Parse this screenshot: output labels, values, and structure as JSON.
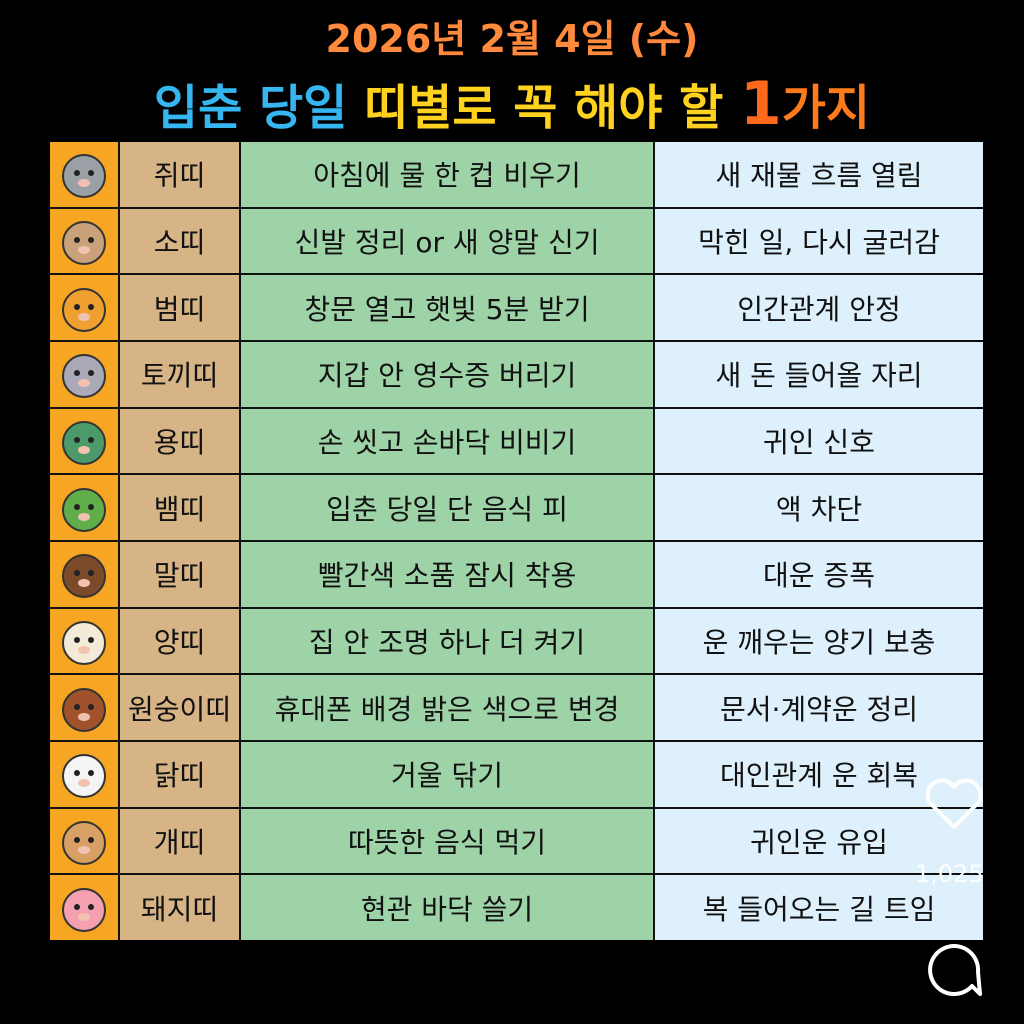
{
  "header": {
    "date": "2026년 2월 4일 (수)",
    "title_part1": "입춘 당일",
    "title_part2": "띠별로 꼭 해야 할",
    "title_number": "1",
    "title_part3": "가지"
  },
  "table": {
    "rows": [
      [
        "쥐띠",
        "아침에 물 한 컵 비우기",
        "새 재물 흐름 열림"
      ],
      [
        "소띠",
        "신발 정리 or 새 양말 신기",
        "막힌 일, 다시 굴러감"
      ],
      [
        "범띠",
        "창문 열고 햇빛 5분 받기",
        "인간관계 안정"
      ],
      [
        "토끼띠",
        "지갑 안 영수증 버리기",
        "새 돈 들어올 자리"
      ],
      [
        "용띠",
        "손 씻고 손바닥 비비기",
        "귀인 신호"
      ],
      [
        "뱀띠",
        "입춘 당일 단 음식 피",
        "액 차단"
      ],
      [
        "말띠",
        "빨간색 소품 잠시 착용",
        "대운 증폭"
      ],
      [
        "양띠",
        "집 안 조명 하나 더 켜기",
        "운 깨우는 양기 보충"
      ],
      [
        "원숭이띠",
        "휴대폰 배경 밝은 색으로 변경",
        "문서·계약운 정리"
      ],
      [
        "닭띠",
        "거울 닦기",
        "대인관계 운 회복"
      ],
      [
        "개띠",
        "따뜻한 음식 먹기",
        "귀인운 유입"
      ],
      [
        "돼지띠",
        "현관 바닥 쓸기",
        "복 들어오는 길 트임"
      ]
    ]
  },
  "social": {
    "like_count": "1,025"
  }
}
